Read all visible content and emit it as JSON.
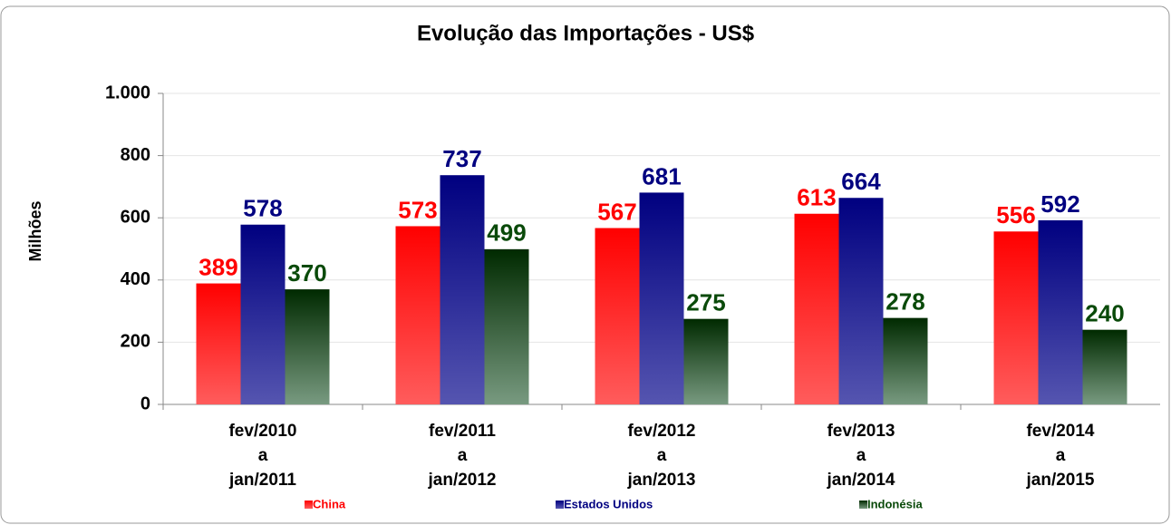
{
  "chart_data": {
    "type": "bar",
    "title": "Evolução das Importações - US$",
    "y_label": "Milhões",
    "categories": [
      [
        "fev/2010",
        "a",
        "jan/2011"
      ],
      [
        "fev/2011",
        "a",
        "jan/2012"
      ],
      [
        "fev/2012",
        "a",
        "jan/2013"
      ],
      [
        "fev/2013",
        "a",
        "jan/2014"
      ],
      [
        "fev/2014",
        "a",
        "jan/2015"
      ]
    ],
    "series": [
      {
        "name": "China",
        "color": "#ff0000",
        "values": [
          389,
          573,
          567,
          613,
          556
        ]
      },
      {
        "name": "Estados Unidos",
        "color": "#000080",
        "values": [
          578,
          737,
          681,
          664,
          592
        ]
      },
      {
        "name": "Indonésia",
        "color": "#0a4a0a",
        "values": [
          370,
          499,
          275,
          278,
          240
        ]
      }
    ],
    "ylim": [
      0,
      1000
    ],
    "yticks": [
      0,
      200,
      400,
      600,
      800,
      {
        "value": 1000,
        "label": "1.000"
      }
    ],
    "grid": true,
    "legend": "bottom"
  }
}
